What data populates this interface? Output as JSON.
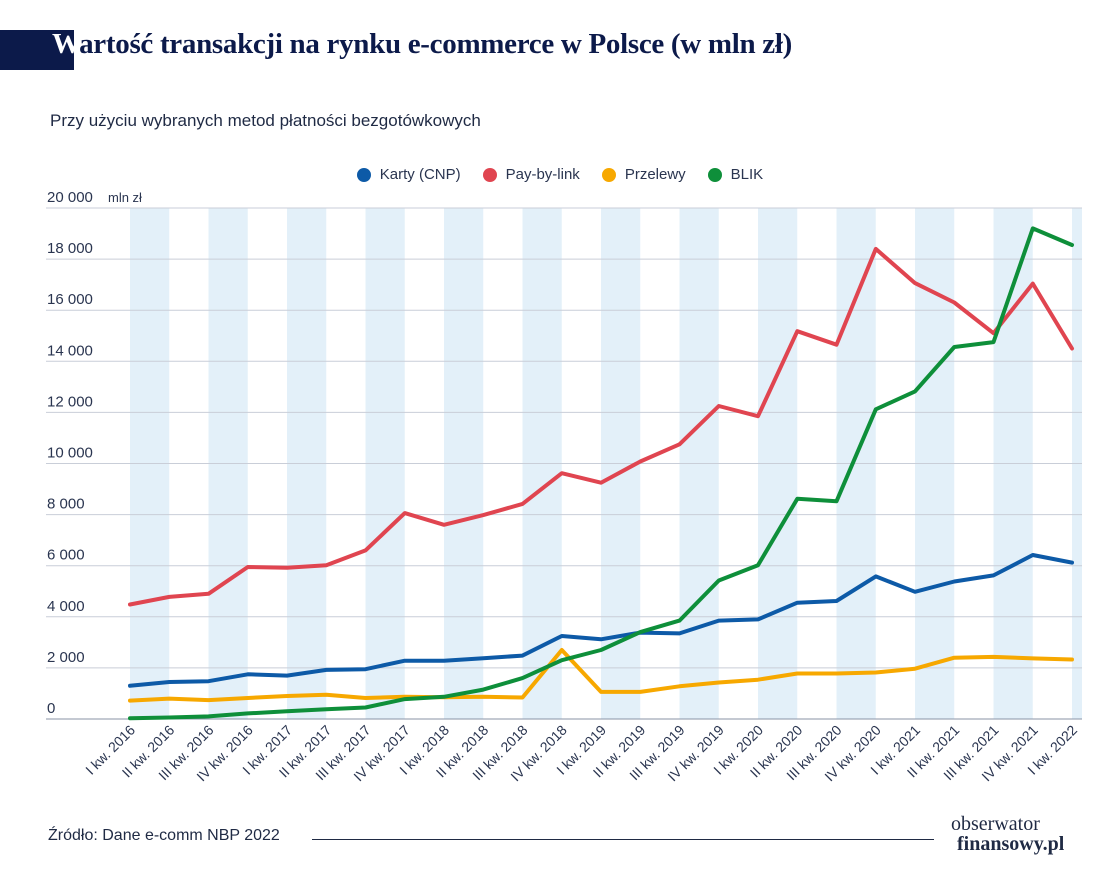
{
  "header": {
    "title_cap": "W",
    "title_rest": "artość transakcji na rynku e-commerce w Polsce (w mln zł)",
    "subtitle": "Przy użyciu wybranych metod płatności bezgotówkowych"
  },
  "footer": {
    "source": "Źródło: Dane e-comm NBP 2022",
    "logo_line1": "obserwator",
    "logo_line2": "finansowy.pl"
  },
  "chart_data": {
    "type": "line",
    "title": "Wartość transakcji na rynku e-commerce w Polsce (w mln zł)",
    "subtitle": "Przy użyciu wybranych metod płatności bezgotówkowych",
    "ylabel": "mln zł",
    "xlabel": "",
    "ylim": [
      0,
      20000
    ],
    "yticks": [
      0,
      2000,
      4000,
      6000,
      8000,
      10000,
      12000,
      14000,
      16000,
      18000,
      20000
    ],
    "ytick_labels": [
      "0",
      "2 000",
      "4 000",
      "6 000",
      "8 000",
      "10 000",
      "12 000",
      "14 000",
      "16 000",
      "18 000",
      "20 000"
    ],
    "legend_position": "top-center",
    "grid": true,
    "categories": [
      "I kw. 2016",
      "II kw. 2016",
      "III kw. 2016",
      "IV kw. 2016",
      "I kw. 2017",
      "II kw. 2017",
      "III kw. 2017",
      "IV kw. 2017",
      "I kw. 2018",
      "II kw. 2018",
      "III kw. 2018",
      "IV kw. 2018",
      "I kw. 2019",
      "II kw. 2019",
      "III kw. 2019",
      "IV kw. 2019",
      "I kw. 2020",
      "II kw. 2020",
      "III kw. 2020",
      "IV kw. 2020",
      "I kw. 2021",
      "II kw. 2021",
      "III kw. 2021",
      "IV kw. 2021",
      "I kw. 2022"
    ],
    "series": [
      {
        "name": "Karty (CNP)",
        "color": "#0d5aa7",
        "values": [
          1300,
          1450,
          1480,
          1750,
          1700,
          1920,
          1950,
          2280,
          2280,
          2380,
          2480,
          3250,
          3120,
          3380,
          3350,
          3850,
          3900,
          4550,
          4620,
          5580,
          4980,
          5380,
          5620,
          6420,
          6120
        ]
      },
      {
        "name": "Pay-by-link",
        "color": "#e04550",
        "values": [
          4480,
          4780,
          4900,
          5950,
          5920,
          6020,
          6600,
          8060,
          7600,
          7980,
          8420,
          9620,
          9250,
          10080,
          10750,
          12250,
          11850,
          15180,
          14650,
          18400,
          17060,
          16300,
          15100,
          17040,
          14500
        ]
      },
      {
        "name": "Przelewy",
        "color": "#f7a800",
        "values": [
          720,
          800,
          740,
          820,
          900,
          950,
          820,
          870,
          850,
          870,
          840,
          2700,
          1060,
          1060,
          1280,
          1430,
          1540,
          1780,
          1780,
          1820,
          1970,
          2400,
          2430,
          2370,
          2330
        ]
      },
      {
        "name": "BLIK",
        "color": "#0e8f3a",
        "values": [
          30,
          60,
          100,
          220,
          300,
          380,
          450,
          780,
          870,
          1150,
          1600,
          2300,
          2700,
          3400,
          3850,
          5420,
          6020,
          8620,
          8520,
          12120,
          12820,
          14560,
          14750,
          19200,
          18550
        ]
      }
    ]
  }
}
